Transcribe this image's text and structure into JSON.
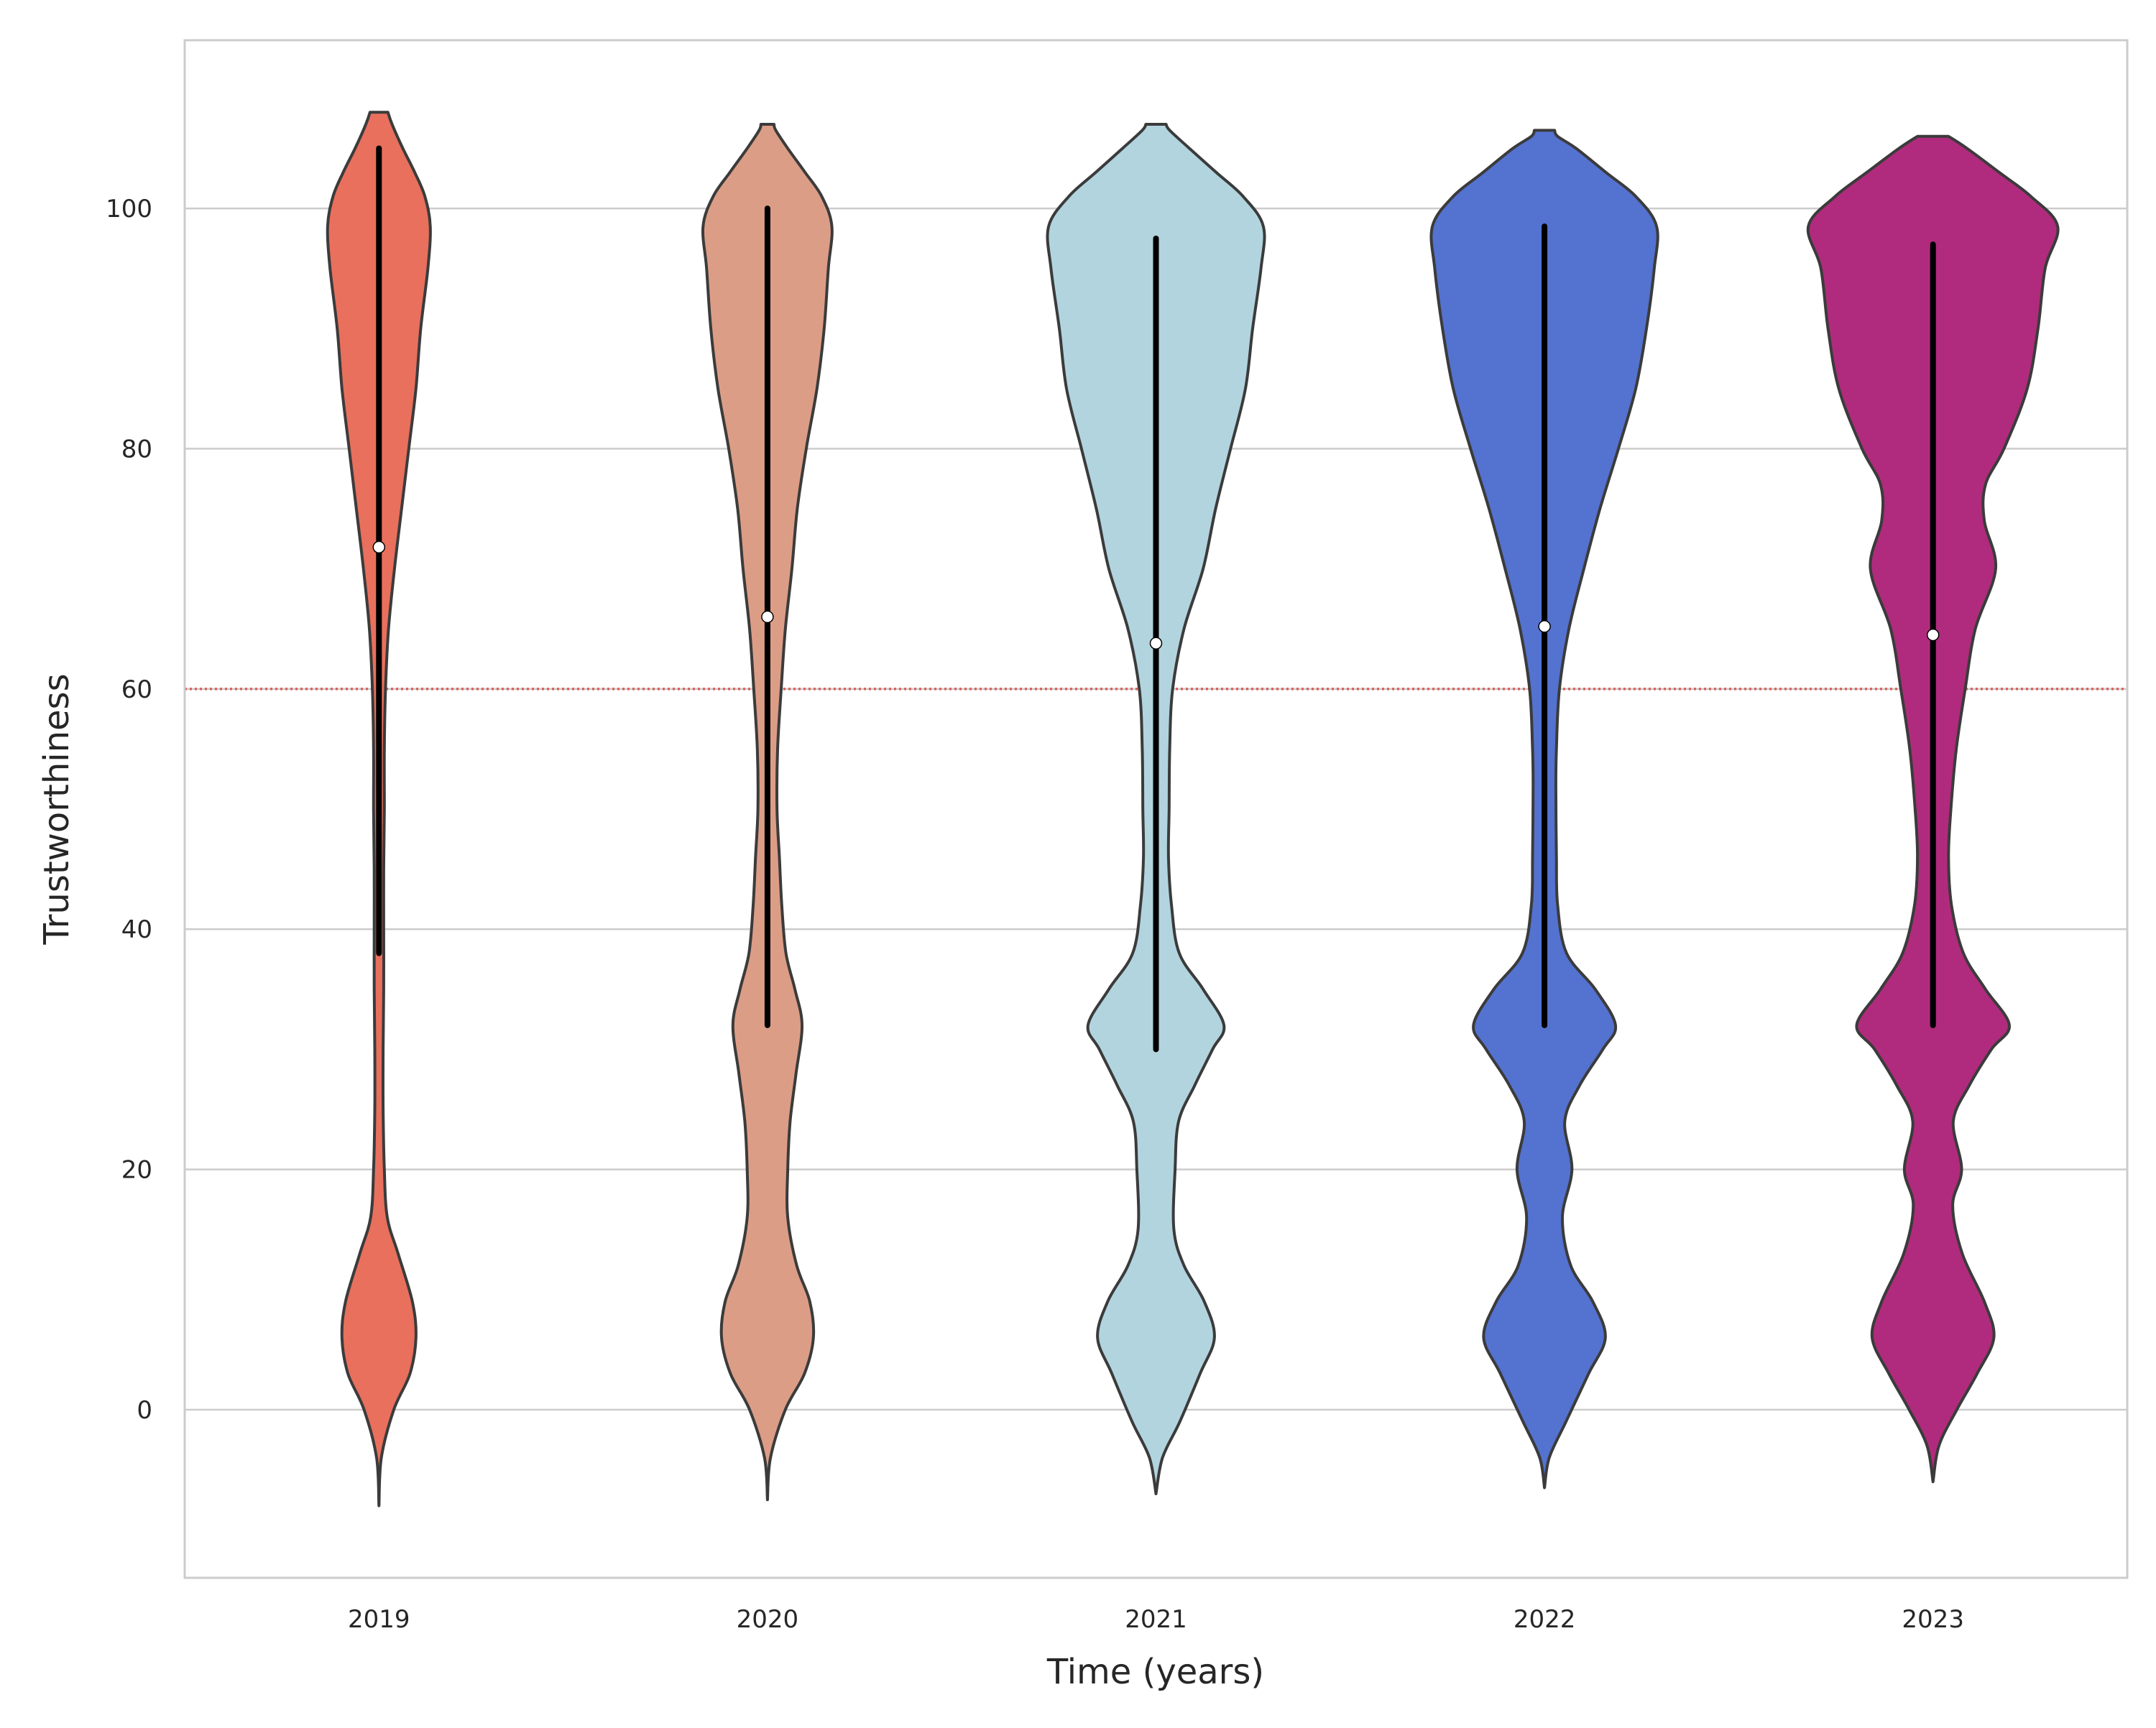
{
  "chart_data": {
    "type": "violin",
    "xlabel": "Time (years)",
    "ylabel": "Trustworthiness",
    "ylim": [
      -14,
      114
    ],
    "yticks": [
      0,
      20,
      40,
      60,
      80,
      100
    ],
    "ytick_labels": [
      "0",
      "20",
      "40",
      "60",
      "80",
      "100"
    ],
    "categories": [
      "2019",
      "2020",
      "2021",
      "2022",
      "2023"
    ],
    "grid": "horizontal",
    "reference_line": {
      "y": 60,
      "color": "#d9534f",
      "style": "dotted"
    },
    "edge_color": "#3b3b3b",
    "series": [
      {
        "category": "2019",
        "color": "#e8705d",
        "min": -8,
        "max": 108,
        "whisker_low": 38,
        "whisker_high": 105,
        "median": 71.8,
        "profile": [
          [
            -8,
            0.0
          ],
          [
            -4,
            0.4
          ],
          [
            0,
            2.5
          ],
          [
            3,
            5.2
          ],
          [
            6,
            6.2
          ],
          [
            9,
            5.6
          ],
          [
            13,
            3.2
          ],
          [
            16,
            1.4
          ],
          [
            20,
            0.9
          ],
          [
            25,
            0.7
          ],
          [
            30,
            0.7
          ],
          [
            35,
            0.8
          ],
          [
            40,
            0.8
          ],
          [
            45,
            0.8
          ],
          [
            50,
            0.9
          ],
          [
            55,
            0.9
          ],
          [
            60,
            1.1
          ],
          [
            65,
            1.6
          ],
          [
            70,
            2.6
          ],
          [
            75,
            3.8
          ],
          [
            80,
            5.0
          ],
          [
            85,
            6.2
          ],
          [
            90,
            7.0
          ],
          [
            95,
            8.2
          ],
          [
            98.5,
            8.6
          ],
          [
            101,
            7.7
          ],
          [
            103,
            6.0
          ],
          [
            105,
            4.0
          ],
          [
            107,
            2.2
          ],
          [
            108,
            1.5
          ]
        ]
      },
      {
        "category": "2020",
        "color": "#dc9d86",
        "min": -7.5,
        "max": 107,
        "whisker_low": 32,
        "whisker_high": 100,
        "median": 66,
        "profile": [
          [
            -7.5,
            0.0
          ],
          [
            -4,
            0.5
          ],
          [
            0,
            3.0
          ],
          [
            3,
            6.2
          ],
          [
            6,
            7.7
          ],
          [
            9,
            7.1
          ],
          [
            12,
            4.9
          ],
          [
            16,
            3.4
          ],
          [
            20,
            3.4
          ],
          [
            24,
            3.8
          ],
          [
            28,
            4.8
          ],
          [
            32,
            5.8
          ],
          [
            35,
            4.6
          ],
          [
            38,
            3.1
          ],
          [
            42,
            2.4
          ],
          [
            46,
            2.0
          ],
          [
            50,
            1.6
          ],
          [
            55,
            1.7
          ],
          [
            60,
            2.3
          ],
          [
            65,
            3.0
          ],
          [
            70,
            4.1
          ],
          [
            75,
            5.0
          ],
          [
            80,
            6.5
          ],
          [
            85,
            8.3
          ],
          [
            90,
            9.5
          ],
          [
            95,
            10.2
          ],
          [
            98.5,
            10.8
          ],
          [
            101,
            9.1
          ],
          [
            103,
            6.3
          ],
          [
            105,
            3.4
          ],
          [
            106.5,
            1.4
          ],
          [
            107,
            1.1
          ]
        ]
      },
      {
        "category": "2021",
        "color": "#b2d4df",
        "min": -7,
        "max": 107,
        "whisker_low": 30,
        "whisker_high": 97.5,
        "median": 63.8,
        "profile": [
          [
            -7,
            0.0
          ],
          [
            -4,
            1.1
          ],
          [
            -1,
            4.0
          ],
          [
            3,
            7.4
          ],
          [
            6,
            9.8
          ],
          [
            9,
            8.1
          ],
          [
            12,
            4.7
          ],
          [
            15,
            3.0
          ],
          [
            20,
            3.2
          ],
          [
            24,
            3.8
          ],
          [
            27,
            6.5
          ],
          [
            30,
            9.5
          ],
          [
            32,
            11.4
          ],
          [
            35,
            7.9
          ],
          [
            38,
            3.9
          ],
          [
            42,
            2.6
          ],
          [
            46,
            2.1
          ],
          [
            50,
            2.2
          ],
          [
            55,
            2.3
          ],
          [
            60,
            2.8
          ],
          [
            65,
            4.7
          ],
          [
            70,
            7.9
          ],
          [
            75,
            10.0
          ],
          [
            80,
            12.5
          ],
          [
            85,
            15.0
          ],
          [
            90,
            16.2
          ],
          [
            95,
            17.6
          ],
          [
            98.5,
            18.0
          ],
          [
            101,
            14.6
          ],
          [
            103,
            10.1
          ],
          [
            105,
            5.6
          ],
          [
            106.5,
            2.3
          ],
          [
            107,
            1.7
          ]
        ]
      },
      {
        "category": "2022",
        "color": "#5472d0",
        "min": -6.5,
        "max": 106.5,
        "whisker_low": 32,
        "whisker_high": 98.5,
        "median": 65.2,
        "profile": [
          [
            -6.5,
            0.0
          ],
          [
            -4,
            0.8
          ],
          [
            -1,
            3.6
          ],
          [
            3,
            7.4
          ],
          [
            6,
            10.2
          ],
          [
            9,
            8.1
          ],
          [
            12,
            4.4
          ],
          [
            16,
            3.0
          ],
          [
            20,
            4.6
          ],
          [
            24,
            3.4
          ],
          [
            27,
            5.9
          ],
          [
            30,
            9.8
          ],
          [
            32,
            11.9
          ],
          [
            35,
            8.5
          ],
          [
            38,
            3.7
          ],
          [
            42,
            2.2
          ],
          [
            46,
            2.0
          ],
          [
            52,
            1.9
          ],
          [
            55,
            2.0
          ],
          [
            60,
            2.5
          ],
          [
            65,
            4.1
          ],
          [
            70,
            6.6
          ],
          [
            75,
            9.3
          ],
          [
            80,
            12.4
          ],
          [
            85,
            15.3
          ],
          [
            90,
            17.1
          ],
          [
            95,
            18.4
          ],
          [
            98.5,
            18.8
          ],
          [
            101,
            15.3
          ],
          [
            103,
            10.3
          ],
          [
            105,
            5.3
          ],
          [
            106,
            2.2
          ],
          [
            106.5,
            1.7
          ]
        ]
      },
      {
        "category": "2023",
        "color": "#b02b7d",
        "min": -6,
        "max": 106,
        "whisker_low": 32,
        "whisker_high": 97,
        "median": 64.5,
        "profile": [
          [
            -6,
            0.0
          ],
          [
            -3,
            1.0
          ],
          [
            0,
            4.0
          ],
          [
            3,
            7.4
          ],
          [
            6,
            10.2
          ],
          [
            9,
            8.6
          ],
          [
            13,
            4.9
          ],
          [
            17,
            3.3
          ],
          [
            20,
            4.8
          ],
          [
            24,
            3.4
          ],
          [
            27,
            6.1
          ],
          [
            30,
            9.8
          ],
          [
            32,
            12.8
          ],
          [
            35,
            8.8
          ],
          [
            38,
            5.1
          ],
          [
            42,
            3.1
          ],
          [
            46,
            2.6
          ],
          [
            50,
            3.0
          ],
          [
            55,
            3.9
          ],
          [
            60,
            5.4
          ],
          [
            65,
            7.1
          ],
          [
            70,
            10.5
          ],
          [
            74,
            8.6
          ],
          [
            77,
            8.8
          ],
          [
            80,
            11.9
          ],
          [
            85,
            15.8
          ],
          [
            90,
            17.6
          ],
          [
            95,
            18.8
          ],
          [
            98.5,
            20.9
          ],
          [
            101,
            16.4
          ],
          [
            103,
            11.1
          ],
          [
            105,
            5.7
          ],
          [
            106,
            2.6
          ]
        ]
      }
    ]
  }
}
